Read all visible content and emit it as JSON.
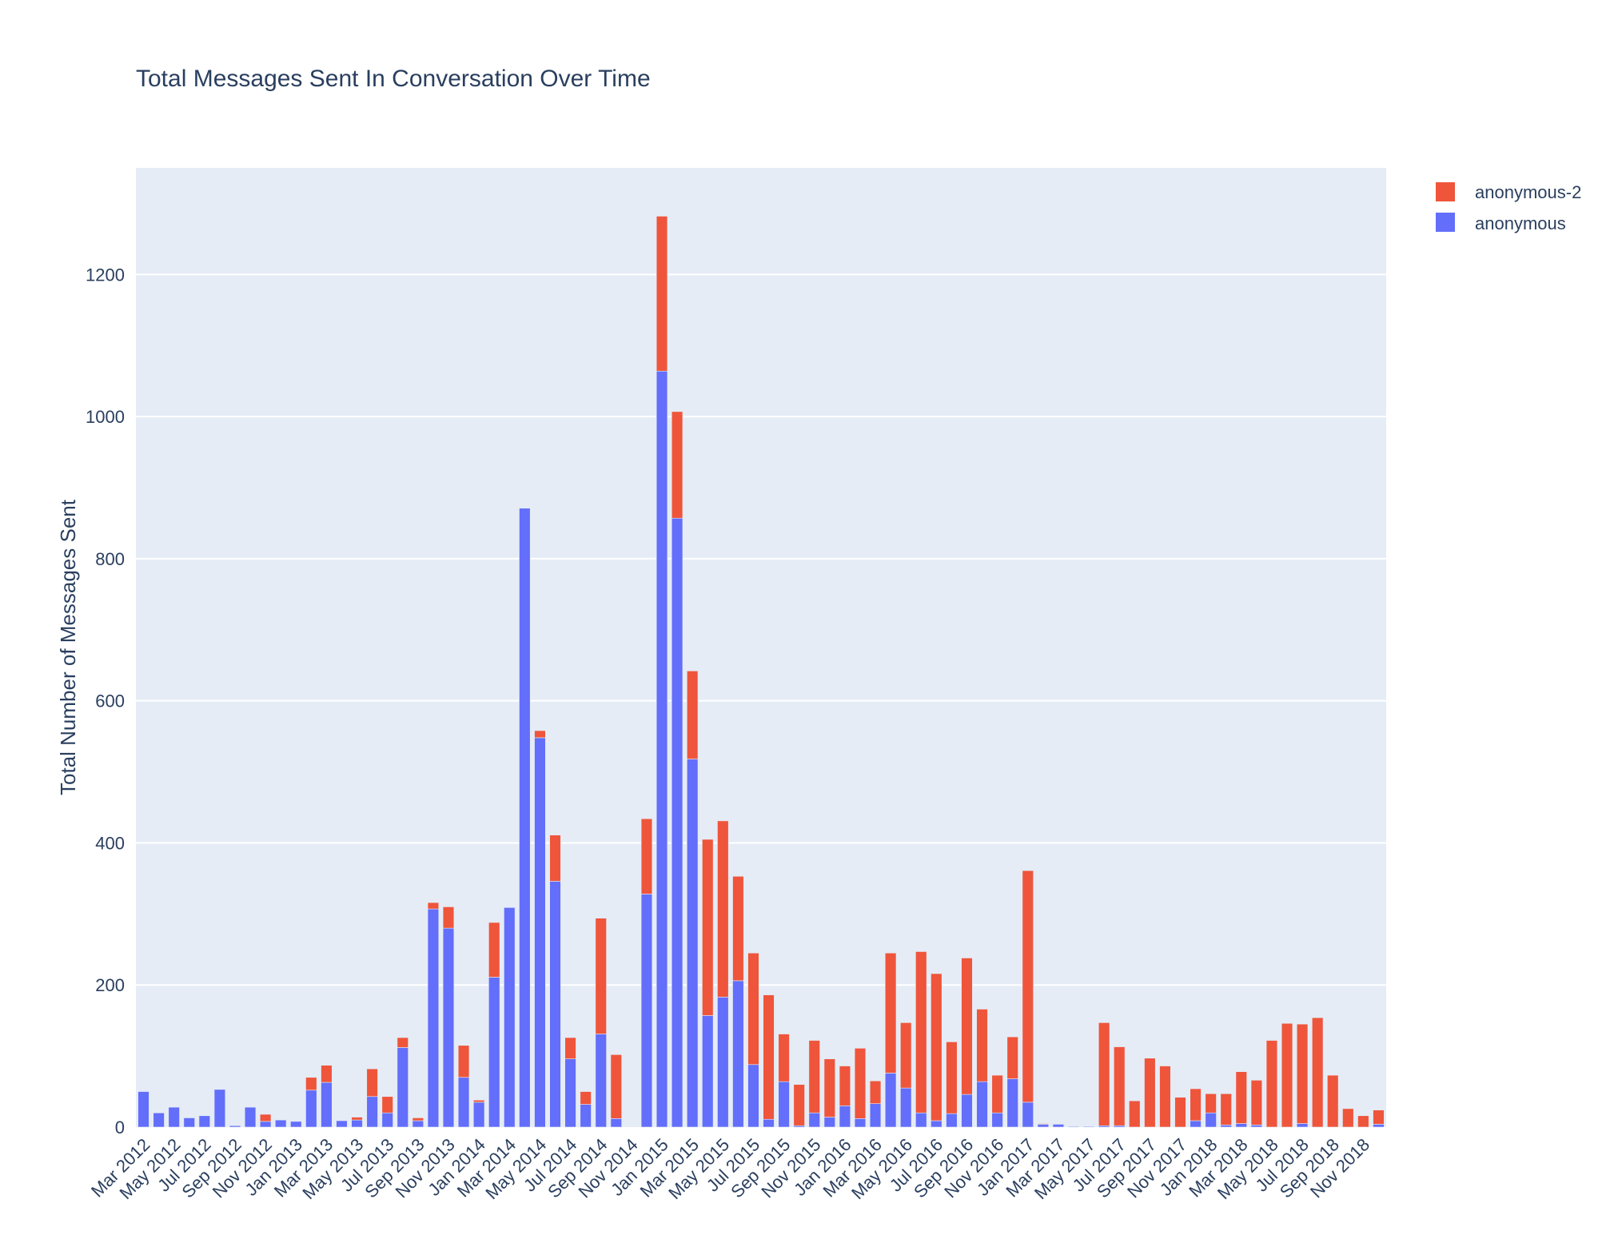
{
  "chart_data": {
    "type": "bar",
    "barmode": "stack",
    "title": "Total Messages Sent In Conversation Over Time",
    "xlabel": "",
    "ylabel": "Total Number of Messages Sent",
    "ylim": [
      0,
      1350
    ],
    "yticks": [
      0,
      200,
      400,
      600,
      800,
      1000,
      1200
    ],
    "grid": true,
    "legend_placement": "top-right",
    "plot_background": "#e5ecf6",
    "categories": [
      "Mar 2012",
      "Apr 2012",
      "May 2012",
      "Jun 2012",
      "Jul 2012",
      "Aug 2012",
      "Sep 2012",
      "Oct 2012",
      "Nov 2012",
      "Dec 2012",
      "Jan 2013",
      "Feb 2013",
      "Mar 2013",
      "Apr 2013",
      "May 2013",
      "Jun 2013",
      "Jul 2013",
      "Aug 2013",
      "Sep 2013",
      "Oct 2013",
      "Nov 2013",
      "Dec 2013",
      "Jan 2014",
      "Feb 2014",
      "Mar 2014",
      "Apr 2014",
      "May 2014",
      "Jun 2014",
      "Jul 2014",
      "Aug 2014",
      "Sep 2014",
      "Oct 2014",
      "Nov 2014",
      "Dec 2014",
      "Jan 2015",
      "Feb 2015",
      "Mar 2015",
      "Apr 2015",
      "May 2015",
      "Jun 2015",
      "Jul 2015",
      "Aug 2015",
      "Sep 2015",
      "Oct 2015",
      "Nov 2015",
      "Dec 2015",
      "Jan 2016",
      "Feb 2016",
      "Mar 2016",
      "Apr 2016",
      "May 2016",
      "Jun 2016",
      "Jul 2016",
      "Aug 2016",
      "Sep 2016",
      "Oct 2016",
      "Nov 2016",
      "Dec 2016",
      "Jan 2017",
      "Feb 2017",
      "Mar 2017",
      "Apr 2017",
      "May 2017",
      "Jun 2017",
      "Jul 2017",
      "Aug 2017",
      "Sep 2017",
      "Oct 2017",
      "Nov 2017",
      "Dec 2017",
      "Jan 2018",
      "Feb 2018",
      "Mar 2018",
      "Apr 2018",
      "May 2018",
      "Jun 2018",
      "Jul 2018",
      "Aug 2018",
      "Sep 2018",
      "Oct 2018",
      "Nov 2018",
      "Dec 2018"
    ],
    "xtick_labels": [
      "Mar 2012",
      "May 2012",
      "Jul 2012",
      "Sep 2012",
      "Nov 2012",
      "Jan 2013",
      "Mar 2013",
      "May 2013",
      "Jul 2013",
      "Sep 2013",
      "Nov 2013",
      "Jan 2014",
      "Mar 2014",
      "May 2014",
      "Jul 2014",
      "Sep 2014",
      "Nov 2014",
      "Jan 2015",
      "Mar 2015",
      "May 2015",
      "Jul 2015",
      "Sep 2015",
      "Nov 2015",
      "Jan 2016",
      "Mar 2016",
      "May 2016",
      "Jul 2016",
      "Sep 2016",
      "Nov 2016",
      "Jan 2017",
      "Mar 2017",
      "May 2017",
      "Jul 2017",
      "Sep 2017",
      "Nov 2017",
      "Jan 2018",
      "Mar 2018",
      "May 2018",
      "Jul 2018",
      "Sep 2018",
      "Nov 2018"
    ],
    "series": [
      {
        "name": "anonymous",
        "color": "#636efa",
        "values": [
          50,
          20,
          28,
          13,
          16,
          53,
          2,
          28,
          8,
          10,
          8,
          52,
          63,
          9,
          10,
          43,
          20,
          112,
          9,
          307,
          280,
          70,
          35,
          211,
          309,
          871,
          548,
          346,
          96,
          32,
          131,
          12,
          0,
          328,
          1064,
          857,
          518,
          157,
          183,
          206,
          88,
          11,
          64,
          2,
          20,
          14,
          30,
          12,
          33,
          76,
          55,
          20,
          9,
          19,
          46,
          64,
          20,
          68,
          35,
          4,
          4,
          1,
          1,
          2,
          2,
          0,
          0,
          0,
          0,
          9,
          20,
          3,
          5,
          3,
          0,
          0,
          5,
          0,
          0,
          0,
          0,
          4
        ]
      },
      {
        "name": "anonymous-2",
        "color": "#ef553b",
        "values": [
          0,
          0,
          0,
          0,
          0,
          0,
          0,
          0,
          10,
          0,
          0,
          18,
          24,
          0,
          4,
          39,
          23,
          14,
          4,
          9,
          30,
          45,
          3,
          77,
          0,
          0,
          10,
          65,
          30,
          18,
          163,
          90,
          0,
          106,
          218,
          150,
          124,
          248,
          248,
          147,
          157,
          175,
          67,
          58,
          102,
          82,
          56,
          99,
          32,
          169,
          92,
          227,
          207,
          101,
          192,
          102,
          53,
          59,
          326,
          1,
          0,
          0,
          0,
          145,
          111,
          37,
          97,
          86,
          42,
          45,
          27,
          44,
          73,
          63,
          122,
          146,
          140,
          154,
          73,
          26,
          16,
          20
        ]
      }
    ]
  }
}
